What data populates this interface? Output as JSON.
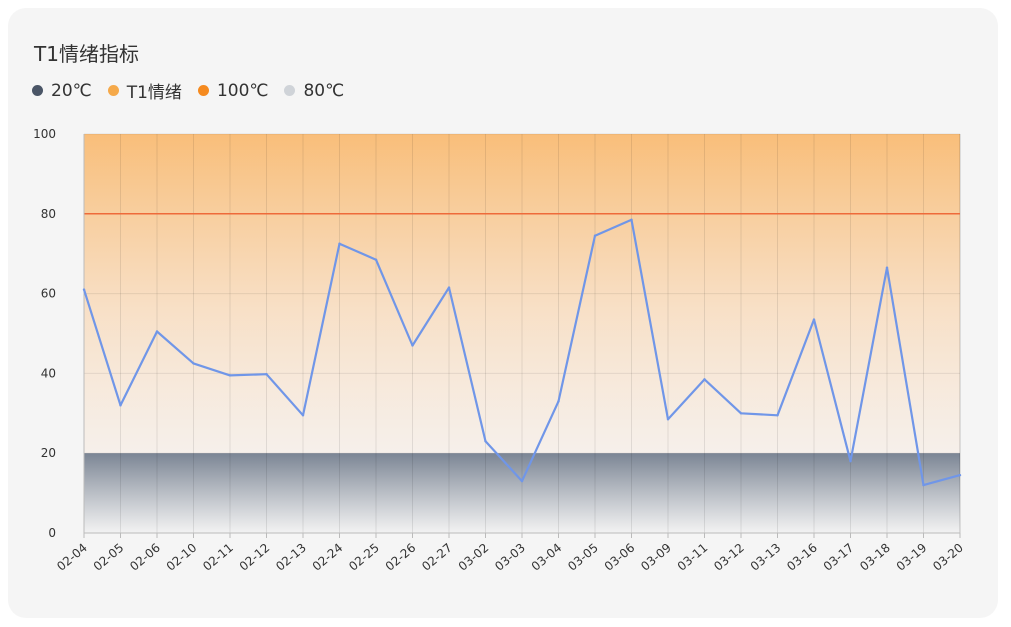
{
  "chart_data": {
    "type": "line",
    "title": "T1情绪指标",
    "categories": [
      "02-04",
      "02-05",
      "02-06",
      "02-10",
      "02-11",
      "02-12",
      "02-13",
      "02-24",
      "02-25",
      "02-26",
      "02-27",
      "03-02",
      "03-03",
      "03-04",
      "03-05",
      "03-06",
      "03-09",
      "03-11",
      "03-12",
      "03-13",
      "03-16",
      "03-17",
      "03-18",
      "03-19",
      "03-20"
    ],
    "series": [
      {
        "name": "T1情绪",
        "color": "#7096e8",
        "values": [
          61,
          32,
          50.5,
          42.5,
          39.5,
          39.8,
          29.5,
          72.5,
          68.5,
          47,
          61.5,
          23,
          13,
          33,
          74.5,
          78.5,
          28.5,
          38.5,
          30,
          29.5,
          53.5,
          18,
          66.5,
          12,
          14.5
        ]
      }
    ],
    "ylim": [
      0,
      100
    ],
    "yticks": [
      "0",
      "20",
      "40",
      "60",
      "80",
      "100"
    ],
    "bands": [
      {
        "name": "20℃",
        "from": 0,
        "to": 20,
        "color": "#4a5566"
      },
      {
        "name": "100℃",
        "from": 20,
        "to": 100,
        "color": "#f58a1f"
      }
    ],
    "reference_lines": [
      {
        "name": "80℃",
        "value": 80,
        "color": "#ee6a3a"
      }
    ],
    "legend": [
      {
        "label": "20℃",
        "color": "#4a5566"
      },
      {
        "label": "T1情绪",
        "color": "#f5a94a"
      },
      {
        "label": "100℃",
        "color": "#f58a1f"
      },
      {
        "label": "80℃",
        "color": "#cfd3d8"
      }
    ],
    "grid": true,
    "legend_position": "top-left"
  }
}
